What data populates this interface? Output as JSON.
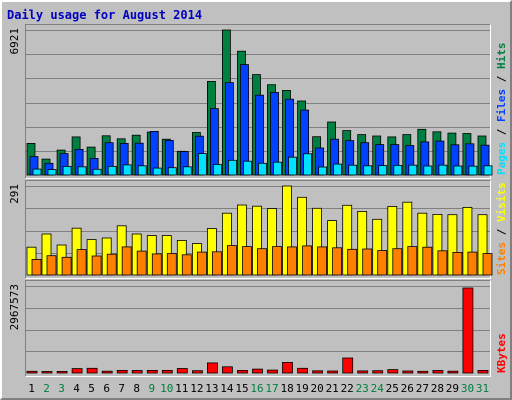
{
  "chart_data": {
    "type": "bar",
    "title": "Daily usage for August 2014",
    "categories": [
      "1",
      "2",
      "3",
      "4",
      "5",
      "6",
      "7",
      "8",
      "9",
      "10",
      "11",
      "12",
      "13",
      "14",
      "15",
      "16",
      "17",
      "18",
      "19",
      "20",
      "21",
      "22",
      "23",
      "24",
      "25",
      "26",
      "27",
      "28",
      "29",
      "30",
      "31"
    ],
    "weekend_days": [
      "2",
      "3",
      "9",
      "10",
      "16",
      "17",
      "23",
      "24",
      "30",
      "31"
    ],
    "panels": [
      {
        "id": "pages_files_hits",
        "y_max_label": "6921",
        "ylim": [
          0,
          6921
        ],
        "legend": [
          "Pages",
          "Files",
          "Hits"
        ],
        "legend_separator": " / ",
        "series": [
          {
            "name": "Hits",
            "color": "#008040",
            "values": [
              1510,
              760,
              1190,
              1820,
              1330,
              1870,
              1730,
              1900,
              2050,
              1710,
              1130,
              2030,
              4470,
              6921,
              5910,
              4790,
              4310,
              4040,
              3530,
              1830,
              2530,
              2120,
              1930,
              1860,
              1820,
              1930,
              2180,
              2060,
              2000,
              1980,
              1860
            ]
          },
          {
            "name": "Files",
            "color": "#0040ff",
            "values": [
              880,
              560,
              1020,
              1220,
              790,
              1540,
              1510,
              1520,
              2080,
              1650,
              1120,
              1850,
              3170,
              4410,
              5270,
              3810,
              3940,
              3620,
              3100,
              1290,
              1710,
              1640,
              1540,
              1450,
              1450,
              1410,
              1580,
              1620,
              1440,
              1490,
              1420
            ]
          },
          {
            "name": "Pages",
            "color": "#00e0ff",
            "values": [
              280,
              260,
              410,
              390,
              270,
              410,
              480,
              440,
              330,
              350,
              390,
              1020,
              500,
              700,
              660,
              560,
              610,
              850,
              1010,
              380,
              520,
              470,
              440,
              450,
              460,
              470,
              430,
              470,
              430,
              420,
              440
            ]
          }
        ]
      },
      {
        "id": "sites_visits",
        "y_max_label": "291",
        "ylim": [
          0,
          291
        ],
        "legend": [
          "Sites",
          "Visits"
        ],
        "legend_separator": " / ",
        "series": [
          {
            "name": "Visits",
            "color": "#ffff00",
            "values": [
              91,
              134,
              98,
              153,
              116,
              121,
              161,
              134,
              129,
              129,
              113,
              103,
              152,
              202,
              229,
              225,
              217,
              291,
              254,
              218,
              178,
              228,
              208,
              182,
              224,
              238,
              202,
              198,
              197,
              221,
              197
            ]
          },
          {
            "name": "Sites",
            "color": "#ff8000",
            "values": [
              51,
              63,
              58,
              83,
              62,
              68,
              92,
              78,
              69,
              70,
              66,
              75,
              76,
              96,
              93,
              86,
              93,
              92,
              95,
              92,
              89,
              84,
              85,
              80,
              86,
              93,
              91,
              79,
              74,
              75,
              70
            ]
          }
        ]
      },
      {
        "id": "kbytes",
        "y_max_label": "2967573",
        "ylim": [
          0,
          2967573
        ],
        "legend": [
          "KBytes"
        ],
        "legend_separator": "",
        "series": [
          {
            "name": "KBytes",
            "color": "#ff0000",
            "values": [
              58000,
              52000,
              56000,
              150000,
              161000,
              60000,
              90000,
              86000,
              87000,
              89000,
              152000,
              78000,
              345000,
              210000,
              87000,
              132000,
              100000,
              360000,
              160000,
              75000,
              69000,
              510000,
              70000,
              80000,
              115000,
              68000,
              58000,
              85000,
              62000,
              2900000,
              88000
            ]
          }
        ]
      }
    ],
    "colors": {
      "background": "#c0c0c0",
      "title": "#0000c0",
      "weekday_label": "#000000",
      "weekend_label": "#008040",
      "gridline": "#808080",
      "bar_outline": "#000000"
    },
    "grid": true
  }
}
